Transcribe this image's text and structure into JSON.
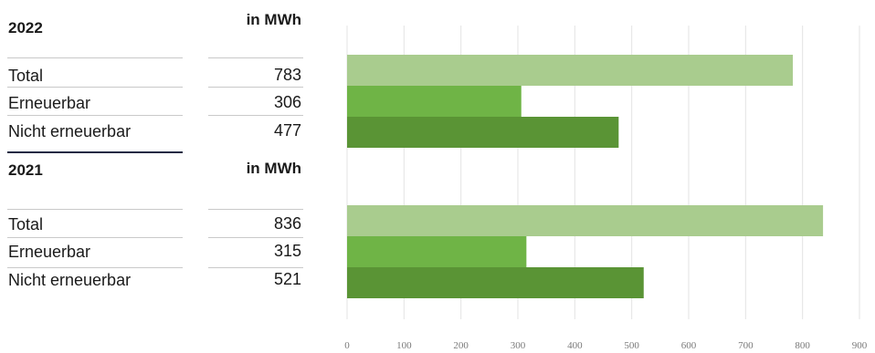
{
  "table": [
    {
      "year": "2022",
      "unit": "in MWh",
      "rows": [
        {
          "label": "Total",
          "value": "783"
        },
        {
          "label": "Erneuerbar",
          "value": "306"
        },
        {
          "label": "Nicht erneuerbar",
          "value": "477"
        }
      ]
    },
    {
      "year": "2021",
      "unit": "in MWh",
      "rows": [
        {
          "label": "Total",
          "value": "836"
        },
        {
          "label": "Erneuerbar",
          "value": "315"
        },
        {
          "label": "Nicht erneuerbar",
          "value": "521"
        }
      ]
    }
  ],
  "chart_data": {
    "type": "bar",
    "orientation": "horizontal",
    "groups": [
      "2022",
      "2021"
    ],
    "categories": [
      "Total",
      "Erneuerbar",
      "Nicht erneuerbar"
    ],
    "series": [
      {
        "group": "2022",
        "values": [
          783,
          306,
          477
        ]
      },
      {
        "group": "2021",
        "values": [
          836,
          315,
          521
        ]
      }
    ],
    "colors": [
      "#a9cc8e",
      "#6fb446",
      "#5a9435"
    ],
    "xlim": [
      0,
      900
    ],
    "xticks": [
      0,
      100,
      200,
      300,
      400,
      500,
      600,
      700,
      800,
      900
    ],
    "grid": true,
    "title": "",
    "xlabel": "",
    "ylabel": ""
  }
}
